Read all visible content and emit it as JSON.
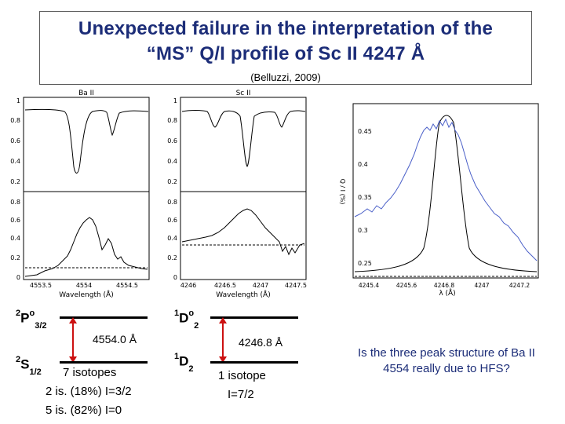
{
  "header": {
    "title_line1": "Unexpected failure in the interpretation of the",
    "title_line2": "“MS” Q/I profile of Sc II 4247 Å",
    "citation": "(Belluzzi, 2009)"
  },
  "ba_panel": {
    "title": "Ba II",
    "x_label": "Wavelength   (Å)",
    "x_ticks": [
      "4553.5",
      "4554",
      "4554.5"
    ],
    "y_ticks_top": [
      "1",
      "0.8",
      "0.6",
      "0.4",
      "0.2"
    ],
    "y_ticks_bottom": [
      "0.8",
      "0.6",
      "0.4",
      "0.2",
      "0"
    ]
  },
  "sc_panel": {
    "title": "Sc II",
    "x_label": "Wavelength   (Å)",
    "x_ticks": [
      "4246",
      "4246.5",
      "4247",
      "4247.5"
    ],
    "y_ticks_top": [
      "1",
      "0.8",
      "0.6",
      "0.4",
      "0.2"
    ],
    "y_ticks_bottom": [
      "0.8",
      "0.6",
      "0.4",
      "0.2",
      "0"
    ]
  },
  "ql_panel": {
    "y_label": "Q / I (%)",
    "x_label": "λ (Å)",
    "x_ticks": [
      "4245.4",
      "4245.6",
      "4246.8",
      "4247",
      "4247.2"
    ],
    "y_ticks": [
      "0.45",
      "0.4",
      "0.35",
      "0.3",
      "0.25"
    ]
  },
  "ba_levels": {
    "upper": {
      "term": "2",
      "letter": "P",
      "sup": "o",
      "sub": "3/2"
    },
    "lower": {
      "term": "2",
      "letter": "S",
      "sub": "1/2"
    },
    "wavelength": "4554.0 Å",
    "isotopes": "7 isotopes",
    "iso_line1": "2 is. (18%) I=3/2",
    "iso_line2": "5 is. (82%) I=0"
  },
  "sc_levels": {
    "upper": {
      "term": "1",
      "letter": "D",
      "sup": "o",
      "sub": "2"
    },
    "lower": {
      "term": "1",
      "letter": "D",
      "sub": "2"
    },
    "wavelength": "4246.8 Å",
    "isotopes": "1 isotope",
    "iso_line1": "I=7/2"
  },
  "question": "Is the three peak structure of Ba II 4554 really due to HFS?",
  "colors": {
    "title": "#1c2d78",
    "curve_blue": "#4a5fc8"
  }
}
